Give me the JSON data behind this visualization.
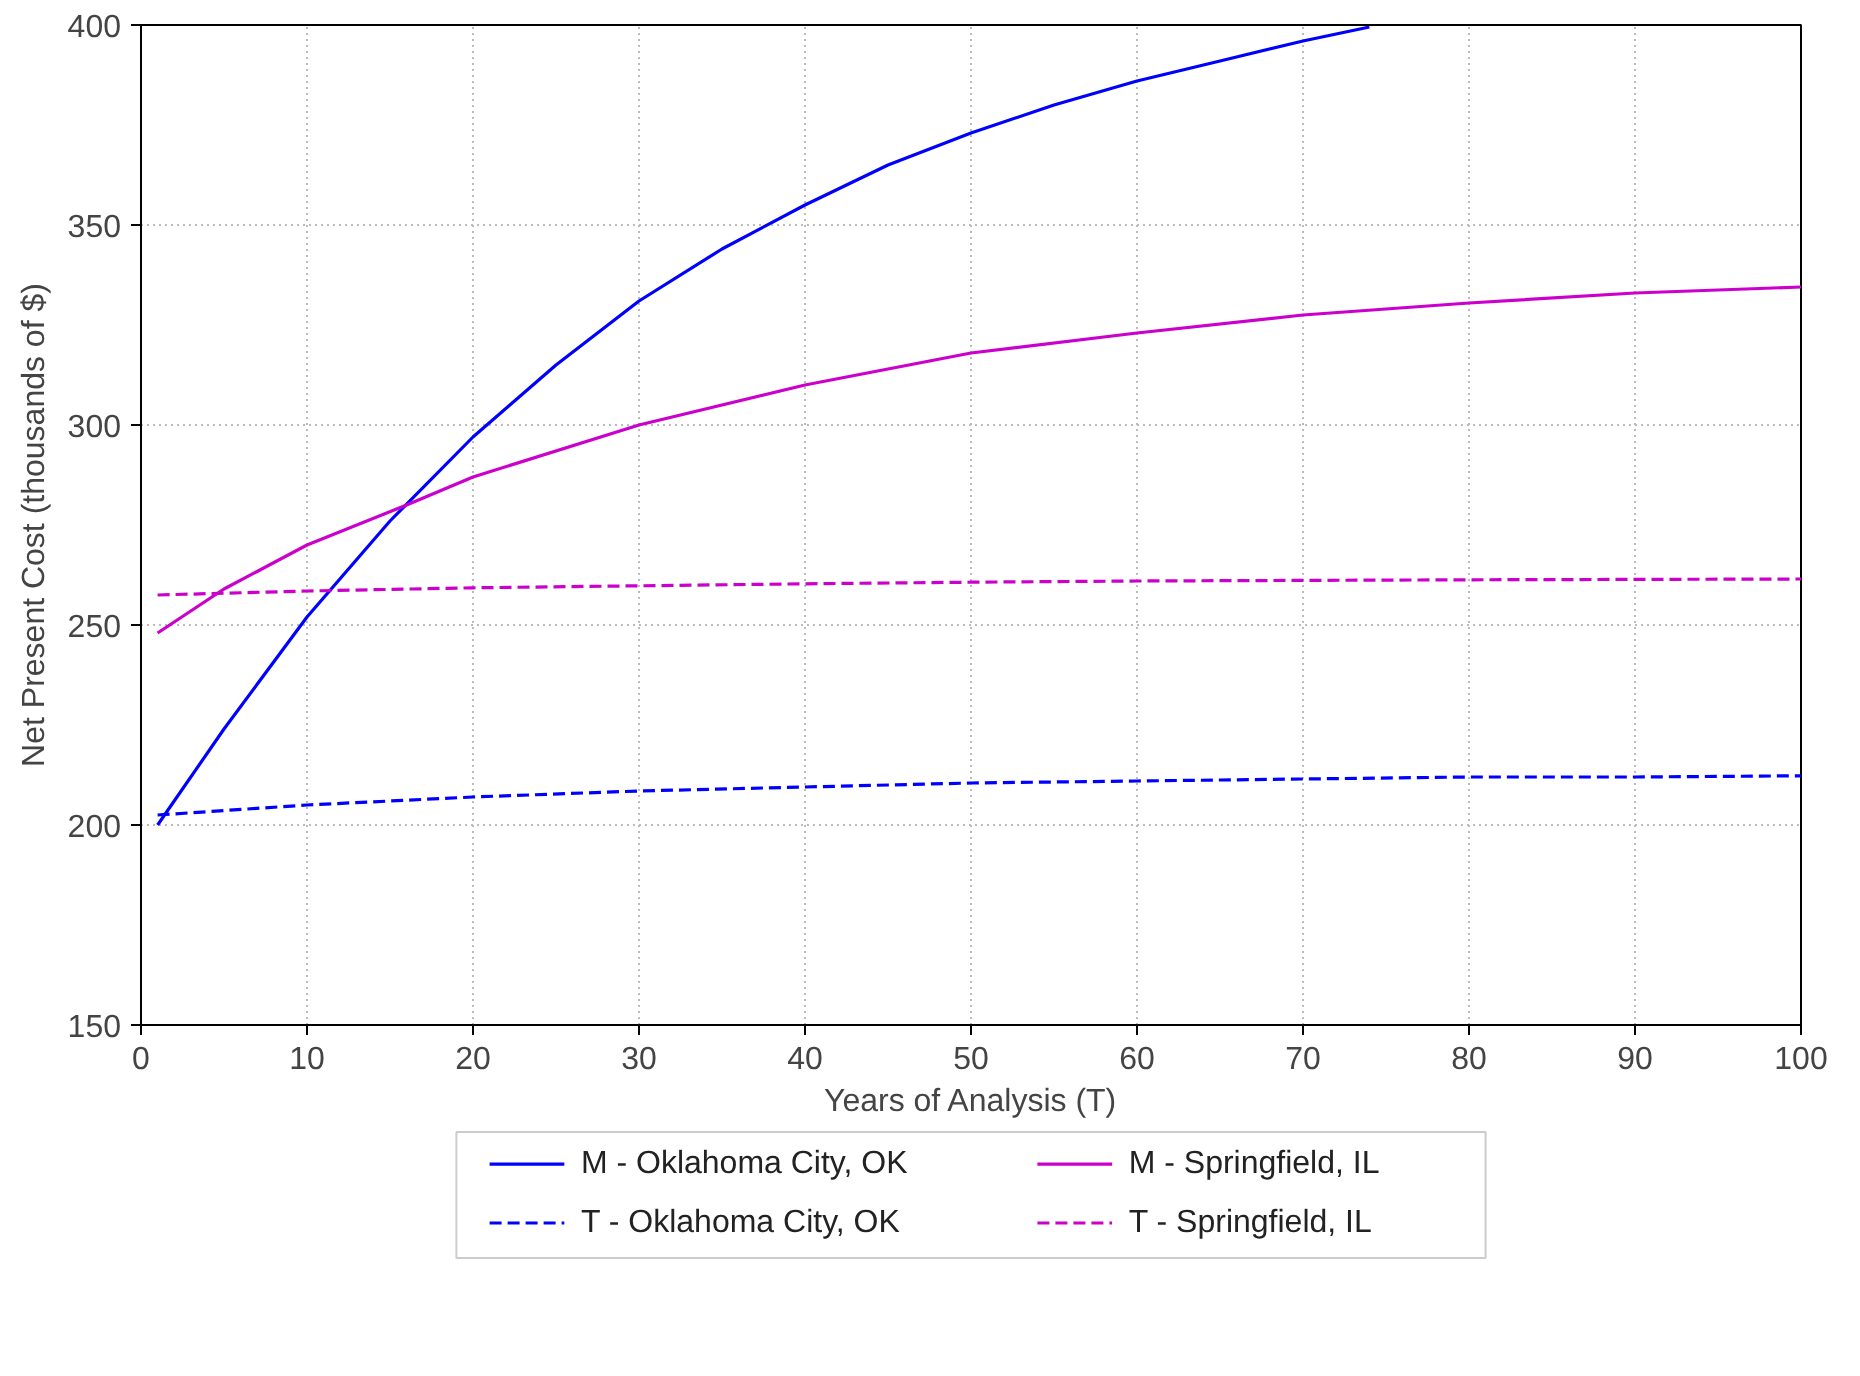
{
  "chart_data": {
    "type": "line",
    "xlabel": "Years of Analysis (T)",
    "ylabel": "Net Present Cost (thousands of $)",
    "xlim": [
      0,
      100
    ],
    "ylim": [
      150,
      400
    ],
    "xticks": [
      0,
      10,
      20,
      30,
      40,
      50,
      60,
      70,
      80,
      90,
      100
    ],
    "yticks": [
      150,
      200,
      250,
      300,
      350,
      400
    ],
    "grid": true,
    "legend": "bottom",
    "series": [
      {
        "name": "M - Oklahoma City, OK",
        "color": "#0000ff",
        "line_style": "solid",
        "x": [
          1,
          5,
          10,
          15,
          20,
          25,
          30,
          35,
          40,
          45,
          50,
          55,
          60,
          65,
          70,
          74
        ],
        "values": [
          200,
          224,
          252,
          276,
          297,
          315,
          331,
          344,
          355,
          365,
          373,
          380,
          386,
          391,
          396,
          399.5
        ]
      },
      {
        "name": "T - Oklahoma City, OK",
        "color": "#0000ff",
        "line_style": "dashed",
        "x": [
          1,
          10,
          20,
          30,
          40,
          50,
          60,
          70,
          80,
          90,
          100
        ],
        "values": [
          202.5,
          205,
          207,
          208.5,
          209.5,
          210.5,
          211,
          211.5,
          212,
          212,
          212.3
        ]
      },
      {
        "name": "M - Springfield, IL",
        "color": "#cc00cc",
        "line_style": "solid",
        "x": [
          1,
          5,
          10,
          16,
          20,
          30,
          40,
          50,
          60,
          70,
          80,
          90,
          100
        ],
        "values": [
          248,
          259,
          270,
          280,
          287,
          300,
          310,
          318,
          323,
          327.5,
          330.5,
          333,
          334.5
        ]
      },
      {
        "name": "T - Springfield, IL",
        "color": "#cc00cc",
        "line_style": "dashed",
        "x": [
          1,
          10,
          20,
          30,
          40,
          50,
          60,
          80,
          100
        ],
        "values": [
          257.5,
          258.5,
          259.3,
          259.8,
          260.3,
          260.7,
          261,
          261.3,
          261.5
        ]
      }
    ]
  }
}
